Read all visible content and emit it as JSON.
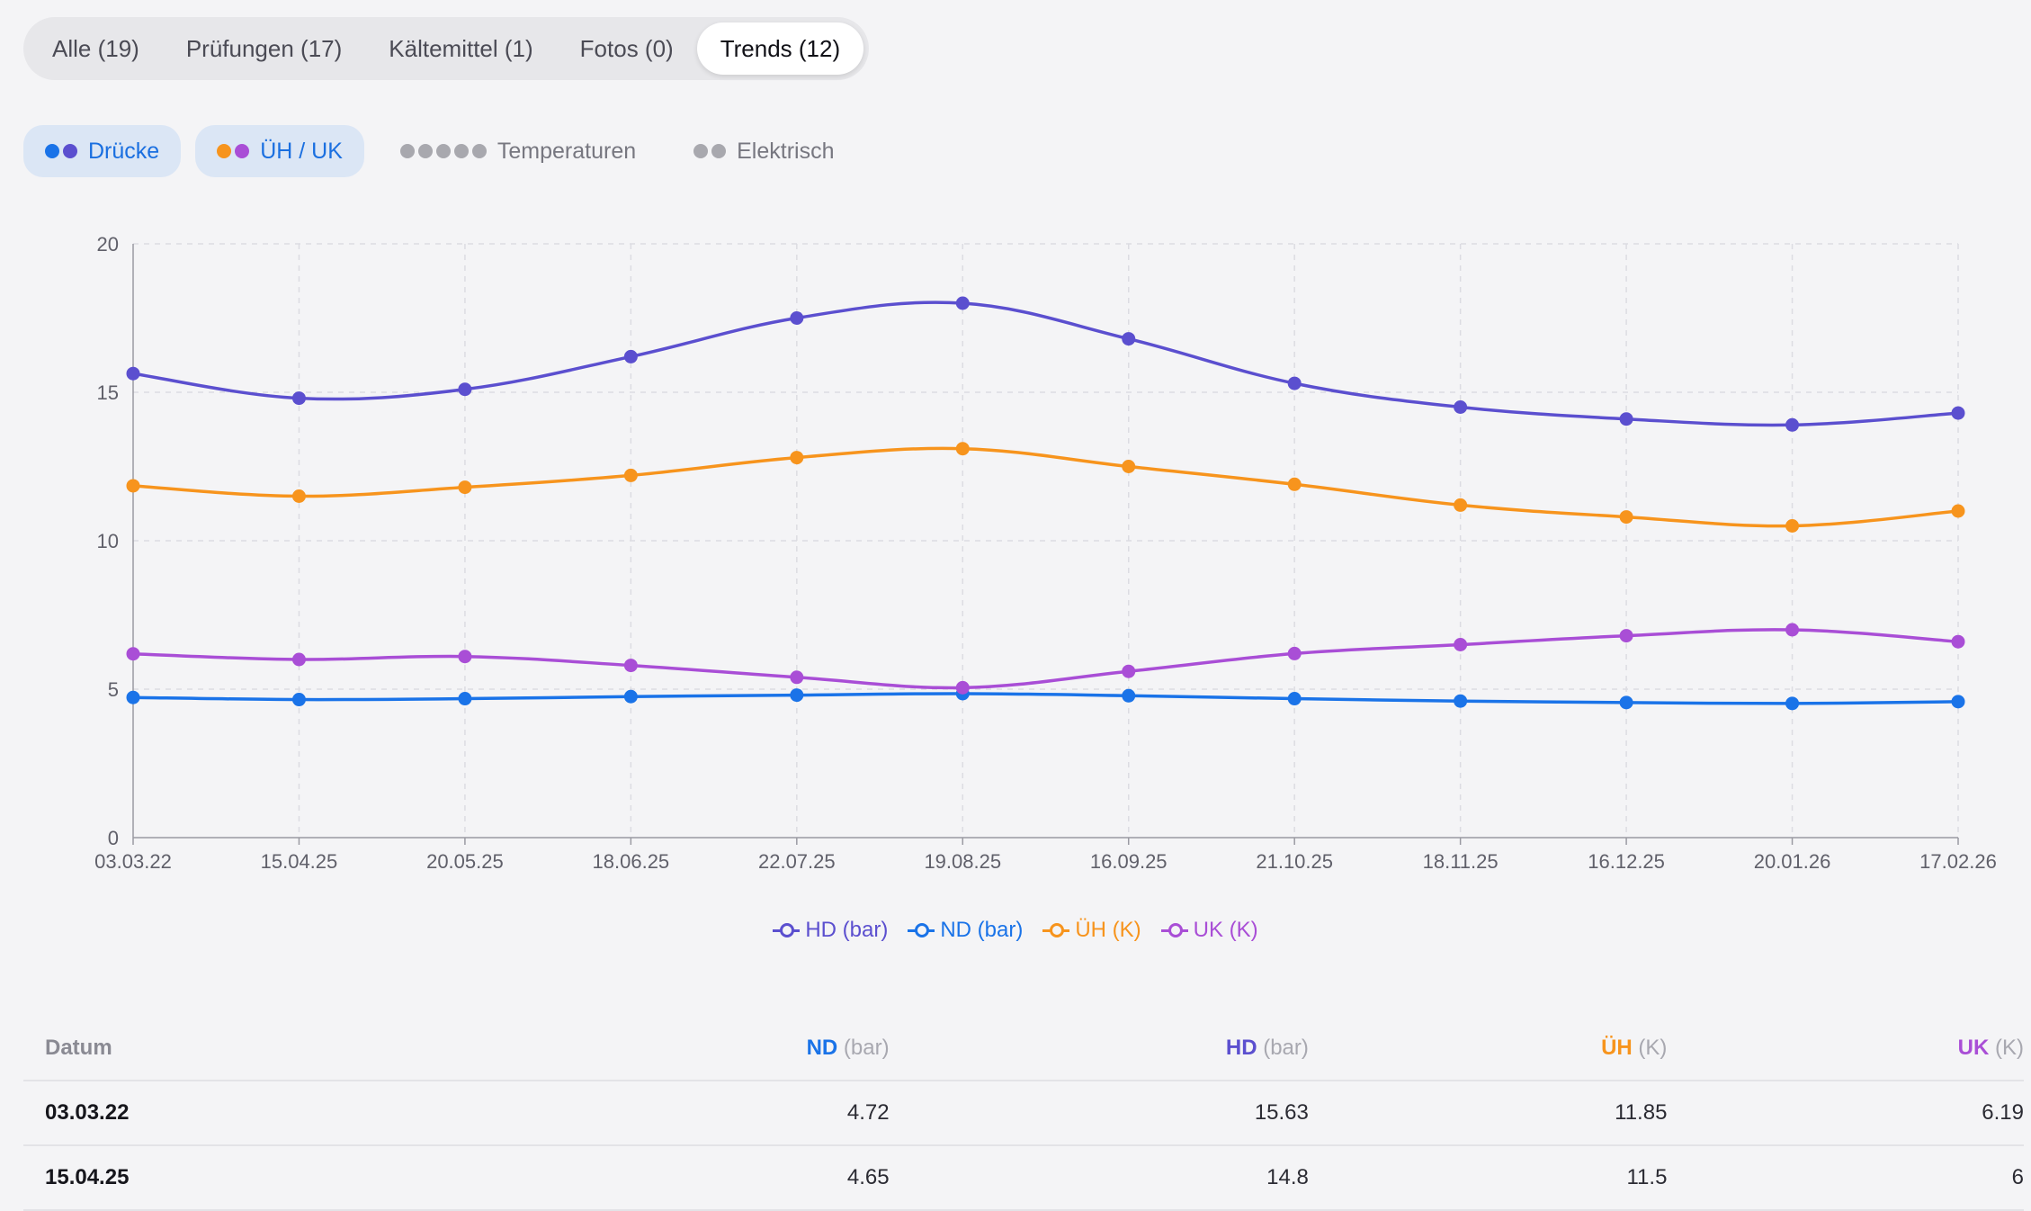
{
  "tabs": [
    {
      "label": "Alle (19)"
    },
    {
      "label": "Prüfungen (17)"
    },
    {
      "label": "Kältemittel (1)"
    },
    {
      "label": "Fotos (0)"
    },
    {
      "label": "Trends (12)"
    }
  ],
  "active_tab": "Trends (12)",
  "filters": [
    {
      "label": "Drücke",
      "active": true,
      "dot_colors": [
        "#1a73e8",
        "#5b4fcf"
      ]
    },
    {
      "label": "ÜH / UK",
      "active": true,
      "dot_colors": [
        "#f7941d",
        "#a94ed6"
      ]
    },
    {
      "label": "Temperaturen",
      "active": false,
      "dot_colors": [
        "#a8a8ae",
        "#a8a8ae",
        "#a8a8ae",
        "#a8a8ae",
        "#a8a8ae"
      ]
    },
    {
      "label": "Elektrisch",
      "active": false,
      "dot_colors": [
        "#a8a8ae",
        "#a8a8ae"
      ]
    }
  ],
  "chart_data": {
    "type": "line",
    "x": [
      "03.03.22",
      "15.04.25",
      "20.05.25",
      "18.06.25",
      "22.07.25",
      "19.08.25",
      "16.09.25",
      "21.10.25",
      "18.11.25",
      "16.12.25",
      "20.01.26",
      "17.02.26"
    ],
    "ylim": [
      0,
      20
    ],
    "yticks": [
      0,
      5,
      10,
      15,
      20
    ],
    "grid": true,
    "legend_position": "bottom-center",
    "series": [
      {
        "name": "HD (bar)",
        "color": "#5b4fcf",
        "values": [
          15.63,
          14.8,
          15.1,
          16.2,
          17.5,
          18.0,
          16.8,
          15.3,
          14.5,
          14.1,
          13.9,
          14.3
        ]
      },
      {
        "name": "ND (bar)",
        "color": "#1a73e8",
        "values": [
          4.72,
          4.65,
          4.68,
          4.75,
          4.8,
          4.85,
          4.78,
          4.68,
          4.6,
          4.55,
          4.52,
          4.58
        ]
      },
      {
        "name": "ÜH (K)",
        "color": "#f7941d",
        "values": [
          11.85,
          11.5,
          11.8,
          12.2,
          12.8,
          13.1,
          12.5,
          11.9,
          11.2,
          10.8,
          10.5,
          11.0
        ]
      },
      {
        "name": "UK (K)",
        "color": "#a94ed6",
        "values": [
          6.19,
          6.0,
          6.1,
          5.8,
          5.4,
          5.05,
          5.6,
          6.2,
          6.5,
          6.8,
          7.0,
          6.6
        ]
      }
    ]
  },
  "table": {
    "headers": {
      "date": "Datum",
      "nd": {
        "name": "ND",
        "unit": "(bar)",
        "color": "#1a73e8"
      },
      "hd": {
        "name": "HD",
        "unit": "(bar)",
        "color": "#5b4fcf"
      },
      "uh": {
        "name": "ÜH",
        "unit": "(K)",
        "color": "#f7941d"
      },
      "uk": {
        "name": "UK",
        "unit": "(K)",
        "color": "#a94ed6"
      }
    },
    "rows": [
      {
        "date": "03.03.22",
        "nd": "4.72",
        "hd": "15.63",
        "uh": "11.85",
        "uk": "6.19"
      },
      {
        "date": "15.04.25",
        "nd": "4.65",
        "hd": "14.8",
        "uh": "11.5",
        "uk": "6"
      }
    ]
  }
}
